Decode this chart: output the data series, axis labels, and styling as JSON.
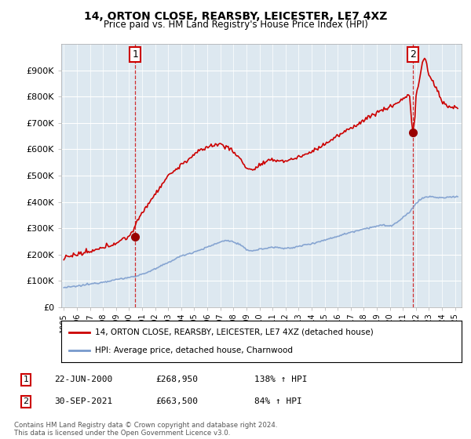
{
  "title": "14, ORTON CLOSE, REARSBY, LEICESTER, LE7 4XZ",
  "subtitle": "Price paid vs. HM Land Registry's House Price Index (HPI)",
  "ylim": [
    0,
    1000000
  ],
  "yticks": [
    0,
    100000,
    200000,
    300000,
    400000,
    500000,
    600000,
    700000,
    800000,
    900000
  ],
  "ytick_labels": [
    "£0",
    "£100K",
    "£200K",
    "£300K",
    "£400K",
    "£500K",
    "£600K",
    "£700K",
    "£800K",
    "£900K"
  ],
  "xlim_start": 1994.8,
  "xlim_end": 2025.5,
  "legend1_label": "14, ORTON CLOSE, REARSBY, LEICESTER, LE7 4XZ (detached house)",
  "legend2_label": "HPI: Average price, detached house, Charnwood",
  "annotation1_date": "22-JUN-2000",
  "annotation1_price": "£268,950",
  "annotation1_hpi": "138% ↑ HPI",
  "annotation2_date": "30-SEP-2021",
  "annotation2_price": "£663,500",
  "annotation2_hpi": "84% ↑ HPI",
  "footnote": "Contains HM Land Registry data © Crown copyright and database right 2024.\nThis data is licensed under the Open Government Licence v3.0.",
  "red_color": "#cc0000",
  "blue_color": "#7799cc",
  "background_color": "#ffffff",
  "chart_bg_color": "#dde8f0",
  "grid_color": "#ffffff",
  "sale1_x": 2000.47,
  "sale1_y": 268950,
  "sale2_x": 2021.75,
  "sale2_y": 663500,
  "vline1_x": 2000.47,
  "vline2_x": 2021.75
}
